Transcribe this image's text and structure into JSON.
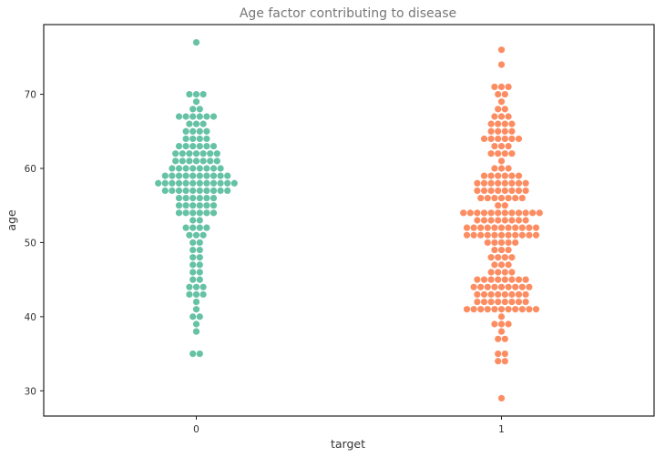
{
  "chart_data": {
    "type": "scatter",
    "subtype": "swarm",
    "title": "Age factor contributing to disease",
    "xlabel": "target",
    "ylabel": "age",
    "categories": [
      "0",
      "1"
    ],
    "y_ticks": [
      30,
      40,
      50,
      60,
      70
    ],
    "ylim": [
      26.6,
      79.4
    ],
    "grid": false,
    "legend": "none",
    "series": [
      {
        "category": "0",
        "color": "#66c2a5",
        "values": [
          77,
          70,
          70,
          70,
          69,
          68,
          68,
          67,
          67,
          67,
          67,
          67,
          67,
          66,
          66,
          66,
          65,
          65,
          65,
          65,
          64,
          64,
          64,
          64,
          63,
          63,
          63,
          63,
          63,
          63,
          62,
          62,
          62,
          62,
          62,
          62,
          62,
          61,
          61,
          61,
          61,
          61,
          61,
          61,
          60,
          60,
          60,
          60,
          60,
          60,
          60,
          60,
          59,
          59,
          59,
          59,
          59,
          59,
          59,
          59,
          59,
          59,
          58,
          58,
          58,
          58,
          58,
          58,
          58,
          58,
          58,
          58,
          58,
          58,
          57,
          57,
          57,
          57,
          57,
          57,
          57,
          57,
          57,
          57,
          56,
          56,
          56,
          56,
          56,
          56,
          55,
          55,
          55,
          55,
          55,
          55,
          54,
          54,
          54,
          54,
          54,
          54,
          53,
          53,
          52,
          52,
          52,
          52,
          51,
          51,
          51,
          50,
          50,
          49,
          49,
          48,
          48,
          47,
          47,
          46,
          46,
          45,
          45,
          44,
          44,
          44,
          43,
          43,
          43,
          42,
          41,
          40,
          40,
          39,
          38,
          35,
          35
        ]
      },
      {
        "category": "1",
        "color": "#fc8d62",
        "values": [
          76,
          74,
          71,
          71,
          71,
          70,
          70,
          69,
          68,
          68,
          67,
          67,
          67,
          66,
          66,
          66,
          66,
          65,
          65,
          65,
          65,
          64,
          64,
          64,
          64,
          64,
          64,
          63,
          63,
          63,
          62,
          62,
          62,
          62,
          61,
          60,
          60,
          60,
          59,
          59,
          59,
          59,
          59,
          59,
          58,
          58,
          58,
          58,
          58,
          58,
          58,
          58,
          57,
          57,
          57,
          57,
          57,
          57,
          57,
          57,
          56,
          56,
          56,
          56,
          56,
          56,
          56,
          55,
          55,
          54,
          54,
          54,
          54,
          54,
          54,
          54,
          54,
          54,
          54,
          54,
          54,
          53,
          53,
          53,
          53,
          53,
          53,
          53,
          53,
          52,
          52,
          52,
          52,
          52,
          52,
          52,
          52,
          52,
          52,
          52,
          51,
          51,
          51,
          51,
          51,
          51,
          51,
          51,
          51,
          51,
          51,
          50,
          50,
          50,
          50,
          50,
          49,
          49,
          49,
          48,
          48,
          48,
          48,
          47,
          47,
          47,
          46,
          46,
          46,
          46,
          45,
          45,
          45,
          45,
          45,
          45,
          45,
          45,
          44,
          44,
          44,
          44,
          44,
          44,
          44,
          44,
          44,
          43,
          43,
          43,
          43,
          43,
          43,
          43,
          43,
          42,
          42,
          42,
          42,
          42,
          42,
          42,
          42,
          41,
          41,
          41,
          41,
          41,
          41,
          41,
          41,
          41,
          41,
          41,
          40,
          39,
          39,
          39,
          38,
          37,
          37,
          35,
          35,
          34,
          34,
          29
        ]
      }
    ]
  }
}
